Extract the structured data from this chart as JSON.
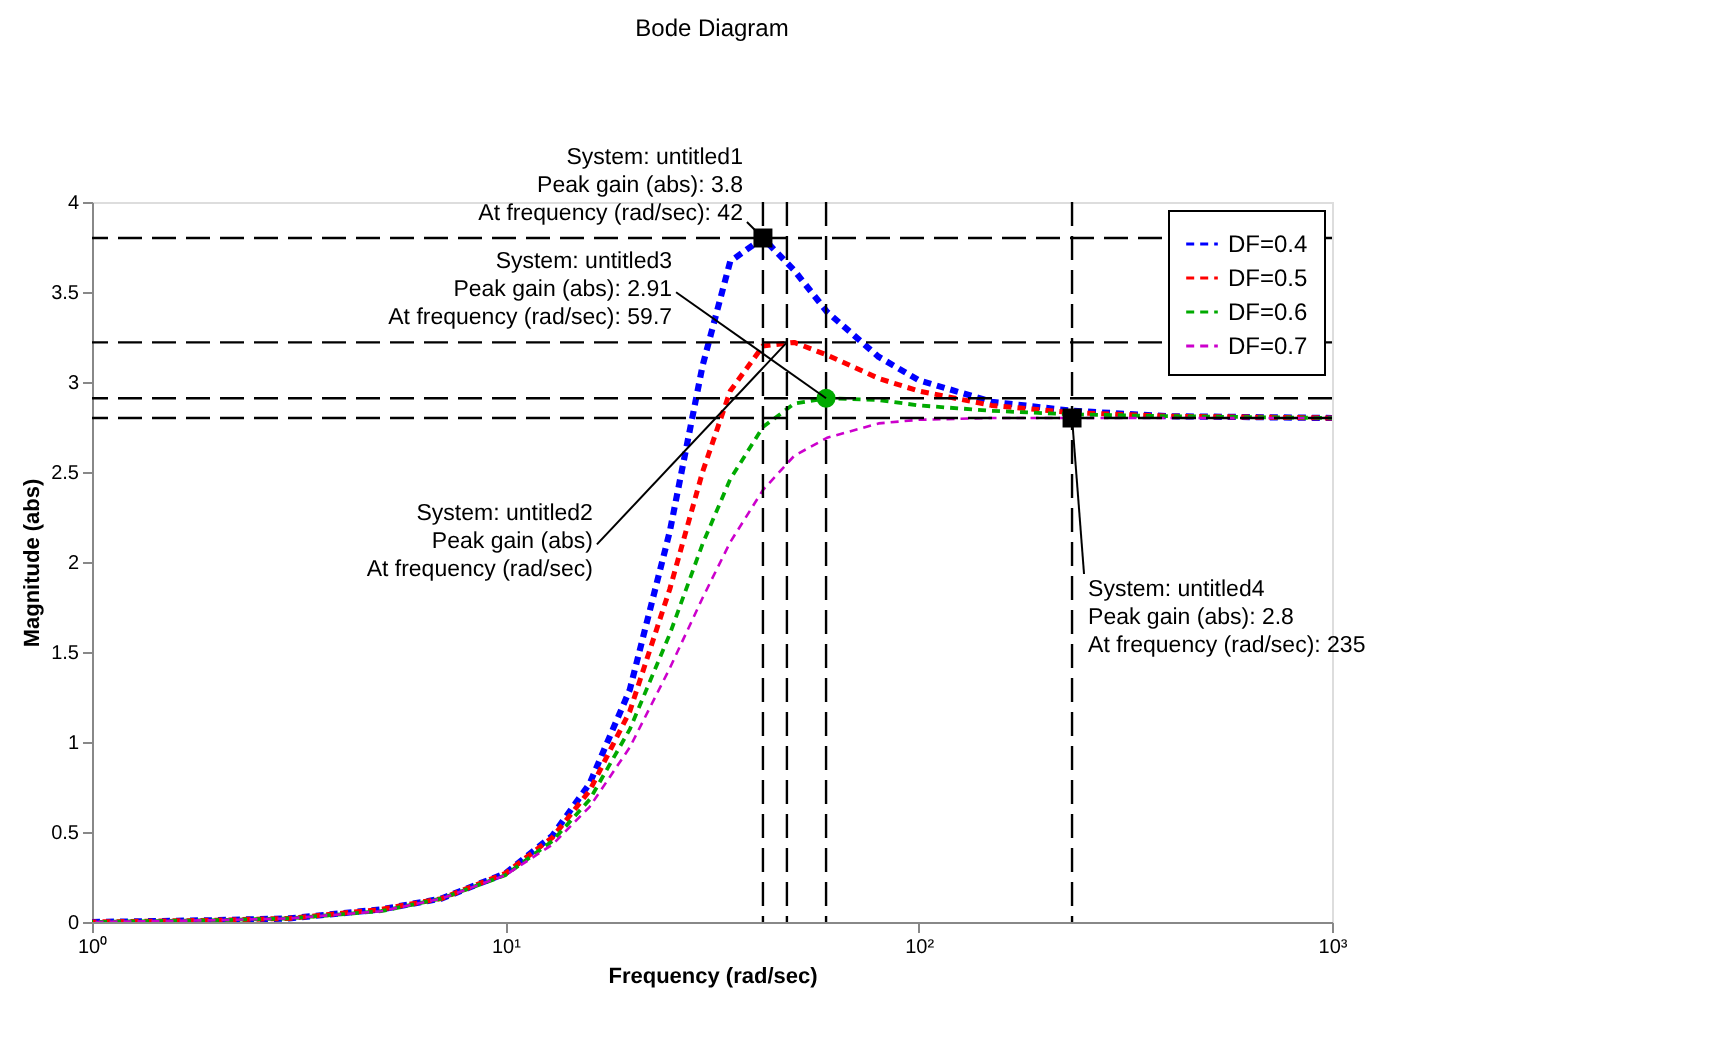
{
  "chart_data": {
    "type": "line",
    "title": "Bode Diagram",
    "xlabel": "Frequency  (rad/sec)",
    "ylabel": "Magnitude (abs)",
    "x": [
      1,
      2,
      3,
      5,
      7,
      10,
      13,
      16,
      20,
      25,
      30,
      35,
      42,
      50,
      60,
      80,
      100,
      150,
      235,
      400,
      1000
    ],
    "xlim": [
      1,
      1000
    ],
    "xticks": [
      {
        "value": 1,
        "label": "10⁰"
      },
      {
        "value": 10,
        "label": "10¹"
      },
      {
        "value": 100,
        "label": "10²"
      },
      {
        "value": 1000,
        "label": "10³"
      }
    ],
    "ylim": [
      0,
      4
    ],
    "yticks": [
      0,
      0.5,
      1,
      1.5,
      2,
      2.5,
      3,
      3.5,
      4
    ],
    "log": "x",
    "grid": false,
    "legend": "top right",
    "line_style": "dashed",
    "series": [
      {
        "name": "DF=0.4",
        "color": "#0000ff",
        "values": [
          0.0,
          0.01,
          0.02,
          0.07,
          0.13,
          0.27,
          0.48,
          0.77,
          1.29,
          2.17,
          3.09,
          3.67,
          3.8,
          3.62,
          3.39,
          3.14,
          3.01,
          2.89,
          2.84,
          2.81,
          2.8
        ]
      },
      {
        "name": "DF=0.5",
        "color": "#ff0000",
        "values": [
          0.0,
          0.01,
          0.02,
          0.07,
          0.13,
          0.27,
          0.47,
          0.73,
          1.17,
          1.85,
          2.5,
          2.95,
          3.2,
          3.22,
          3.15,
          3.02,
          2.95,
          2.87,
          2.83,
          2.81,
          2.8
        ]
      },
      {
        "name": "DF=0.6",
        "color": "#00aa00",
        "values": [
          0.0,
          0.01,
          0.02,
          0.06,
          0.13,
          0.26,
          0.45,
          0.68,
          1.07,
          1.6,
          2.1,
          2.46,
          2.75,
          2.88,
          2.91,
          2.9,
          2.87,
          2.84,
          2.82,
          2.81,
          2.8
        ]
      },
      {
        "name": "DF=0.7",
        "color": "#cc00cc",
        "values": [
          0.0,
          0.01,
          0.02,
          0.06,
          0.13,
          0.26,
          0.43,
          0.64,
          0.97,
          1.41,
          1.8,
          2.11,
          2.4,
          2.59,
          2.69,
          2.77,
          2.79,
          2.8,
          2.8,
          2.8,
          2.8
        ]
      },
      {
        "type": "scatter",
        "marker": "square",
        "color": "#000000",
        "x": [
          42,
          235
        ],
        "values": [
          3.8,
          2.8
        ]
      },
      {
        "type": "scatter",
        "marker": "circle",
        "color": "#00aa00",
        "x": [
          59.7
        ],
        "values": [
          2.91
        ]
      }
    ],
    "ref_lines": [
      {
        "axis": "y",
        "value": 3.8,
        "color": "#000000",
        "line_style": "dashed"
      },
      {
        "axis": "y",
        "value": 3.22,
        "color": "#000000",
        "line_style": "dashed"
      },
      {
        "axis": "y",
        "value": 2.91,
        "color": "#000000",
        "line_style": "dashed"
      },
      {
        "axis": "y",
        "value": 2.8,
        "color": "#000000",
        "line_style": "dashed"
      },
      {
        "axis": "x",
        "value": 42,
        "color": "#000000",
        "line_style": "dashed"
      },
      {
        "axis": "x",
        "value": 48,
        "color": "#000000",
        "line_style": "dashed"
      },
      {
        "axis": "x",
        "value": 59.7,
        "color": "#000000",
        "line_style": "dashed"
      },
      {
        "axis": "x",
        "value": 235,
        "color": "#000000",
        "line_style": "dashed"
      }
    ],
    "annotations": [
      {
        "text": "System: untitled1\nPeak gain (abs): 3.8\nAt frequency (rad/sec): 42",
        "x": 42,
        "y": 3.8
      },
      {
        "text": "System: untitled2\nPeak gain (abs)\nAt frequency (rad/sec)",
        "x": 48,
        "y": 3.22
      },
      {
        "text": "System: untitled3\nPeak gain (abs): 2.91\nAt frequency (rad/sec): 59.7",
        "x": 59.7,
        "y": 2.91
      },
      {
        "text": "System: untitled4\nPeak gain (abs): 2.8\nAt frequency (rad/sec): 235",
        "x": 235,
        "y": 2.8
      }
    ]
  }
}
